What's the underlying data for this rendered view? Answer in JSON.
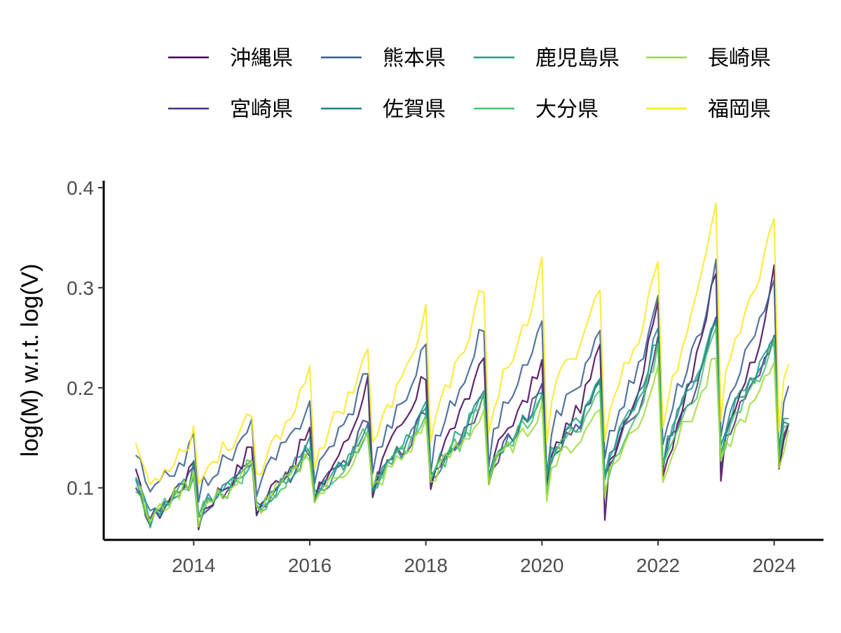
{
  "chart_data": {
    "type": "line",
    "title": "",
    "xlabel": "",
    "ylabel": "log(M) w.r.t. log(V)",
    "x_ticks": [
      "2014",
      "2016",
      "2018",
      "2020",
      "2022",
      "2024"
    ],
    "y_ticks": [
      "0.1",
      "0.2",
      "0.3",
      "0.4"
    ],
    "xlim": [
      2012.45,
      2024.85
    ],
    "ylim": [
      0.048,
      0.407
    ],
    "x_start_year": 2013.0,
    "x_step_years": 0.08333,
    "grid": false,
    "legend_position": "top",
    "series": [
      {
        "name": "沖縄県",
        "color": "#440154",
        "peak_years": [
          2014,
          2015,
          2016,
          2017,
          2018,
          2019,
          2020,
          2021,
          2022,
          2023,
          2024
        ],
        "peak_values": [
          0.128,
          0.142,
          0.158,
          0.208,
          0.212,
          0.238,
          0.225,
          0.238,
          0.293,
          0.318,
          0.314
        ],
        "trough_values": [
          0.064,
          0.078,
          0.086,
          0.098,
          0.102,
          0.103,
          0.1,
          0.075,
          0.103,
          0.1,
          0.118
        ]
      },
      {
        "name": "宮崎県",
        "color": "#46337E",
        "peak_years": [
          2014,
          2015,
          2016,
          2017,
          2018,
          2019,
          2020,
          2021,
          2022,
          2023,
          2024
        ],
        "peak_values": [
          0.12,
          0.125,
          0.14,
          0.168,
          0.176,
          0.193,
          0.198,
          0.205,
          0.245,
          0.262,
          0.248
        ],
        "trough_values": [
          0.068,
          0.08,
          0.088,
          0.1,
          0.108,
          0.112,
          0.105,
          0.105,
          0.12,
          0.125,
          0.13
        ]
      },
      {
        "name": "熊本県",
        "color": "#365C8D",
        "peak_years": [
          2014,
          2015,
          2016,
          2017,
          2018,
          2019,
          2020,
          2021,
          2022,
          2023,
          2024
        ],
        "peak_values": [
          0.15,
          0.162,
          0.188,
          0.222,
          0.245,
          0.262,
          0.275,
          0.255,
          0.29,
          0.325,
          0.308
        ],
        "trough_values": [
          0.092,
          0.1,
          0.11,
          0.118,
          0.122,
          0.128,
          0.118,
          0.125,
          0.14,
          0.15,
          0.14
        ]
      },
      {
        "name": "佐賀県",
        "color": "#277F8E",
        "peak_years": [
          2014,
          2015,
          2016,
          2017,
          2018,
          2019,
          2020,
          2021,
          2022,
          2023,
          2024
        ],
        "peak_values": [
          0.12,
          0.13,
          0.145,
          0.16,
          0.18,
          0.192,
          0.2,
          0.205,
          0.262,
          0.27,
          0.255
        ],
        "trough_values": [
          0.07,
          0.078,
          0.088,
          0.097,
          0.108,
          0.115,
          0.11,
          0.11,
          0.128,
          0.135,
          0.135
        ]
      },
      {
        "name": "鹿児島県",
        "color": "#1FA187",
        "peak_years": [
          2014,
          2015,
          2016,
          2017,
          2018,
          2019,
          2020,
          2021,
          2022,
          2023,
          2024
        ],
        "peak_values": [
          0.118,
          0.128,
          0.14,
          0.158,
          0.185,
          0.195,
          0.195,
          0.21,
          0.25,
          0.272,
          0.252
        ],
        "trough_values": [
          0.068,
          0.076,
          0.088,
          0.098,
          0.108,
          0.118,
          0.11,
          0.11,
          0.125,
          0.138,
          0.135
        ]
      },
      {
        "name": "大分県",
        "color": "#4AC16D",
        "peak_years": [
          2014,
          2015,
          2016,
          2017,
          2018,
          2019,
          2020,
          2021,
          2022,
          2023,
          2024
        ],
        "peak_values": [
          0.118,
          0.125,
          0.138,
          0.158,
          0.17,
          0.188,
          0.19,
          0.2,
          0.238,
          0.255,
          0.245
        ],
        "trough_values": [
          0.068,
          0.078,
          0.088,
          0.098,
          0.105,
          0.11,
          0.098,
          0.1,
          0.118,
          0.125,
          0.128
        ]
      },
      {
        "name": "長崎県",
        "color": "#9FDA3A",
        "peak_years": [
          2014,
          2015,
          2016,
          2017,
          2018,
          2019,
          2020,
          2021,
          2022,
          2023,
          2024
        ],
        "peak_values": [
          0.118,
          0.122,
          0.135,
          0.15,
          0.165,
          0.178,
          0.18,
          0.182,
          0.22,
          0.23,
          0.225
        ],
        "trough_values": [
          0.068,
          0.078,
          0.088,
          0.098,
          0.105,
          0.105,
          0.095,
          0.098,
          0.112,
          0.118,
          0.125
        ]
      },
      {
        "name": "福岡県",
        "color": "#FDE725",
        "peak_years": [
          2014,
          2015,
          2016,
          2017,
          2018,
          2019,
          2020,
          2021,
          2022,
          2023,
          2024
        ],
        "peak_values": [
          0.16,
          0.18,
          0.223,
          0.24,
          0.278,
          0.303,
          0.322,
          0.303,
          0.328,
          0.39,
          0.373
        ],
        "trough_values": [
          0.102,
          0.112,
          0.125,
          0.14,
          0.148,
          0.155,
          0.14,
          0.14,
          0.16,
          0.17,
          0.165
        ]
      }
    ]
  }
}
